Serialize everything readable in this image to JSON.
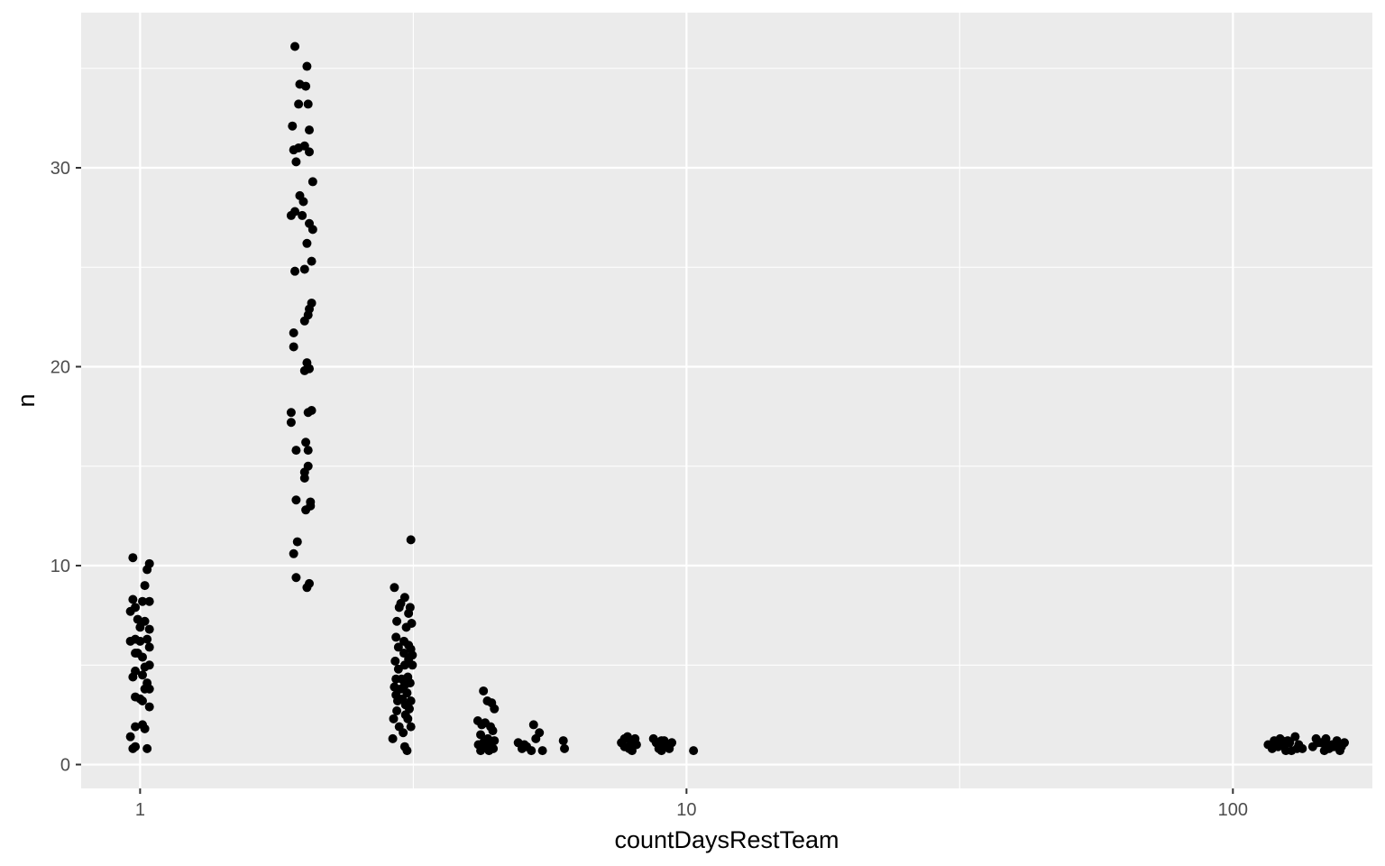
{
  "chart_data": {
    "type": "scatter",
    "title": "",
    "xlabel": "countDaysRestTeam",
    "ylabel": "n",
    "x_scale": "log10",
    "xlim": [
      0.78,
      180
    ],
    "ylim": [
      -1.2,
      37.8
    ],
    "x_ticks": [
      1,
      10,
      100
    ],
    "x_tick_labels": [
      "1",
      "10",
      "100"
    ],
    "y_ticks": [
      0,
      10,
      20,
      30
    ],
    "y_tick_labels": [
      "0",
      "10",
      "20",
      "30"
    ],
    "grid": true,
    "panel_background": "#ebebeb",
    "grid_color": "#ffffff",
    "point_color": "#000000",
    "points": [
      [
        0.97,
        10.4
      ],
      [
        1.04,
        10.1
      ],
      [
        1.03,
        9.8
      ],
      [
        1.02,
        9.0
      ],
      [
        0.97,
        8.3
      ],
      [
        1.01,
        8.2
      ],
      [
        1.04,
        8.2
      ],
      [
        0.98,
        7.9
      ],
      [
        0.96,
        7.7
      ],
      [
        0.99,
        7.3
      ],
      [
        1.02,
        7.2
      ],
      [
        1.0,
        6.9
      ],
      [
        1.04,
        6.8
      ],
      [
        0.98,
        6.3
      ],
      [
        0.96,
        6.2
      ],
      [
        1.0,
        6.2
      ],
      [
        1.03,
        6.3
      ],
      [
        1.04,
        5.9
      ],
      [
        0.99,
        5.6
      ],
      [
        0.98,
        5.6
      ],
      [
        1.01,
        5.4
      ],
      [
        1.04,
        5.0
      ],
      [
        1.02,
        4.9
      ],
      [
        0.98,
        4.7
      ],
      [
        1.01,
        4.5
      ],
      [
        0.97,
        4.4
      ],
      [
        1.03,
        4.1
      ],
      [
        1.02,
        3.8
      ],
      [
        1.04,
        3.8
      ],
      [
        0.98,
        3.4
      ],
      [
        1.0,
        3.3
      ],
      [
        1.01,
        3.2
      ],
      [
        1.04,
        2.9
      ],
      [
        0.98,
        1.9
      ],
      [
        1.01,
        2.0
      ],
      [
        1.02,
        1.8
      ],
      [
        0.96,
        1.4
      ],
      [
        0.98,
        0.9
      ],
      [
        0.97,
        0.8
      ],
      [
        1.03,
        0.8
      ],
      [
        1.92,
        36.1
      ],
      [
        2.02,
        35.1
      ],
      [
        1.96,
        34.2
      ],
      [
        2.01,
        34.1
      ],
      [
        1.95,
        33.2
      ],
      [
        2.03,
        33.2
      ],
      [
        1.9,
        32.1
      ],
      [
        2.04,
        31.9
      ],
      [
        1.95,
        31.0
      ],
      [
        2.0,
        31.1
      ],
      [
        1.91,
        30.9
      ],
      [
        2.04,
        30.8
      ],
      [
        1.93,
        30.3
      ],
      [
        2.07,
        29.3
      ],
      [
        1.96,
        28.6
      ],
      [
        1.99,
        28.3
      ],
      [
        1.92,
        27.8
      ],
      [
        1.98,
        27.6
      ],
      [
        1.89,
        27.6
      ],
      [
        2.04,
        27.2
      ],
      [
        2.07,
        26.9
      ],
      [
        2.02,
        26.2
      ],
      [
        2.06,
        25.3
      ],
      [
        2.0,
        24.9
      ],
      [
        1.92,
        24.8
      ],
      [
        2.06,
        23.2
      ],
      [
        2.04,
        22.9
      ],
      [
        2.03,
        22.6
      ],
      [
        2.0,
        22.3
      ],
      [
        1.91,
        21.7
      ],
      [
        1.91,
        21.0
      ],
      [
        2.02,
        20.2
      ],
      [
        2.04,
        19.9
      ],
      [
        2.0,
        19.8
      ],
      [
        1.89,
        17.7
      ],
      [
        2.06,
        17.8
      ],
      [
        2.03,
        17.7
      ],
      [
        1.89,
        17.2
      ],
      [
        2.01,
        16.2
      ],
      [
        1.93,
        15.8
      ],
      [
        2.03,
        15.8
      ],
      [
        2.03,
        15.0
      ],
      [
        2.0,
        14.7
      ],
      [
        2.0,
        14.4
      ],
      [
        1.93,
        13.3
      ],
      [
        2.05,
        13.2
      ],
      [
        2.05,
        13.0
      ],
      [
        2.01,
        12.8
      ],
      [
        1.94,
        11.2
      ],
      [
        1.91,
        10.6
      ],
      [
        1.93,
        9.4
      ],
      [
        2.04,
        9.1
      ],
      [
        2.02,
        8.9
      ],
      [
        3.13,
        11.3
      ],
      [
        2.92,
        8.9
      ],
      [
        3.05,
        8.4
      ],
      [
        3.0,
        8.1
      ],
      [
        2.98,
        7.9
      ],
      [
        3.12,
        7.9
      ],
      [
        3.1,
        7.6
      ],
      [
        2.95,
        7.2
      ],
      [
        3.14,
        7.1
      ],
      [
        3.07,
        6.9
      ],
      [
        2.94,
        6.4
      ],
      [
        3.04,
        6.2
      ],
      [
        3.1,
        6.0
      ],
      [
        2.97,
        5.9
      ],
      [
        3.13,
        5.8
      ],
      [
        3.04,
        5.6
      ],
      [
        3.15,
        5.5
      ],
      [
        3.1,
        5.3
      ],
      [
        2.93,
        5.2
      ],
      [
        3.05,
        5.0
      ],
      [
        3.15,
        5.0
      ],
      [
        2.97,
        4.8
      ],
      [
        3.09,
        4.4
      ],
      [
        2.94,
        4.3
      ],
      [
        3.01,
        4.3
      ],
      [
        3.12,
        4.1
      ],
      [
        3.05,
        4.0
      ],
      [
        2.92,
        3.9
      ],
      [
        3.0,
        3.8
      ],
      [
        3.08,
        3.6
      ],
      [
        2.94,
        3.5
      ],
      [
        3.02,
        3.3
      ],
      [
        3.13,
        3.2
      ],
      [
        2.96,
        3.2
      ],
      [
        3.06,
        3.0
      ],
      [
        3.11,
        2.8
      ],
      [
        2.95,
        2.7
      ],
      [
        3.06,
        2.5
      ],
      [
        2.91,
        2.3
      ],
      [
        3.09,
        2.3
      ],
      [
        3.13,
        1.9
      ],
      [
        2.98,
        1.9
      ],
      [
        3.03,
        1.6
      ],
      [
        2.9,
        1.3
      ],
      [
        3.05,
        0.9
      ],
      [
        3.08,
        0.7
      ],
      [
        4.25,
        3.7
      ],
      [
        4.32,
        3.2
      ],
      [
        4.4,
        3.1
      ],
      [
        4.45,
        2.8
      ],
      [
        4.15,
        2.2
      ],
      [
        4.22,
        2.0
      ],
      [
        4.28,
        2.1
      ],
      [
        4.38,
        1.9
      ],
      [
        4.42,
        1.7
      ],
      [
        4.2,
        1.5
      ],
      [
        4.33,
        1.3
      ],
      [
        4.45,
        1.2
      ],
      [
        4.25,
        1.1
      ],
      [
        4.38,
        1.1
      ],
      [
        4.16,
        1.0
      ],
      [
        4.3,
        0.9
      ],
      [
        4.43,
        0.8
      ],
      [
        4.2,
        0.7
      ],
      [
        4.35,
        0.7
      ],
      [
        4.92,
        1.1
      ],
      [
        5.1,
        0.9
      ],
      [
        5.25,
        2.0
      ],
      [
        5.38,
        1.6
      ],
      [
        5.3,
        1.3
      ],
      [
        5.0,
        0.8
      ],
      [
        5.2,
        0.7
      ],
      [
        5.45,
        0.7
      ],
      [
        5.05,
        1.0
      ],
      [
        5.95,
        1.2
      ],
      [
        5.98,
        0.8
      ],
      [
        7.6,
        1.1
      ],
      [
        7.7,
        1.3
      ],
      [
        7.8,
        1.4
      ],
      [
        7.9,
        1.2
      ],
      [
        8.0,
        1.1
      ],
      [
        8.1,
        1.0
      ],
      [
        7.7,
        0.9
      ],
      [
        7.85,
        0.8
      ],
      [
        7.95,
        0.7
      ],
      [
        8.05,
        1.3
      ],
      [
        8.7,
        1.3
      ],
      [
        8.8,
        1.1
      ],
      [
        8.9,
        0.8
      ],
      [
        9.0,
        0.7
      ],
      [
        9.1,
        1.2
      ],
      [
        9.2,
        1.0
      ],
      [
        9.3,
        0.8
      ],
      [
        9.4,
        1.1
      ],
      [
        9.0,
        1.2
      ],
      [
        8.95,
        0.9
      ],
      [
        10.3,
        0.7
      ],
      [
        116,
        1.0
      ],
      [
        118,
        0.8
      ],
      [
        120,
        1.1
      ],
      [
        122,
        1.3
      ],
      [
        124,
        0.9
      ],
      [
        126,
        1.2
      ],
      [
        128,
        0.7
      ],
      [
        130,
        1.4
      ],
      [
        132,
        1.0
      ],
      [
        134,
        0.8
      ],
      [
        119,
        1.2
      ],
      [
        125,
        0.7
      ],
      [
        121,
        0.9
      ],
      [
        127,
        1.1
      ],
      [
        131,
        0.8
      ],
      [
        123,
        1.2
      ],
      [
        140,
        0.9
      ],
      [
        142,
        1.3
      ],
      [
        145,
        1.1
      ],
      [
        148,
        1.3
      ],
      [
        150,
        0.8
      ],
      [
        152,
        1.0
      ],
      [
        155,
        1.2
      ],
      [
        158,
        0.9
      ],
      [
        160,
        1.1
      ],
      [
        147,
        0.7
      ],
      [
        153,
        0.9
      ],
      [
        143,
        1.1
      ],
      [
        157,
        0.7
      ],
      [
        149,
        1.0
      ]
    ]
  }
}
